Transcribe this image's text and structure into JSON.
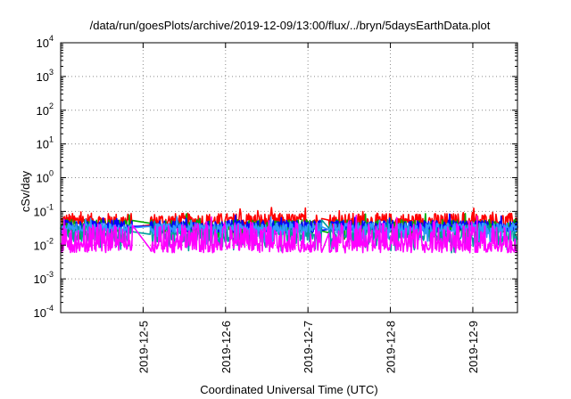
{
  "chart_data": {
    "type": "line",
    "title": "/data/run/goesPlots/archive/2019-12-09/13:00/flux/../bryn/5daysEarthData.plot",
    "xlabel": "Coordinated Universal Time (UTC)",
    "ylabel": "cSv/day",
    "yscale": "log",
    "ylim": [
      0.0001,
      10000
    ],
    "xlim": [
      "2019-12-04 00:00",
      "2019-12-09 13:00"
    ],
    "grid": true,
    "legend": "none",
    "yticks": [
      {
        "base": "10",
        "exp": "-4"
      },
      {
        "base": "10",
        "exp": "-3"
      },
      {
        "base": "10",
        "exp": "-2"
      },
      {
        "base": "10",
        "exp": "-1"
      },
      {
        "base": "10",
        "exp": "0"
      },
      {
        "base": "10",
        "exp": "1"
      },
      {
        "base": "10",
        "exp": "2"
      },
      {
        "base": "10",
        "exp": "3"
      },
      {
        "base": "10",
        "exp": "4"
      }
    ],
    "xticks": [
      "2019-12-5",
      "2019-12-6",
      "2019-12-7",
      "2019-12-8",
      "2019-12-9"
    ],
    "data_gaps": [
      [
        "2019-12-04 21:00",
        "2019-12-05 02:00"
      ],
      [
        "2019-12-07 04:00",
        "2019-12-07 06:00"
      ]
    ],
    "series": [
      {
        "color": "#ff0000",
        "level": 0.05,
        "spread": 0.25,
        "dips": 0.0
      },
      {
        "color": "#00aa00",
        "level": 0.036,
        "spread": 0.2,
        "dips": 0.15
      },
      {
        "color": "#0000ff",
        "level": 0.036,
        "spread": 0.18,
        "dips": 0.0
      },
      {
        "color": "#009e9e",
        "level": 0.022,
        "spread": 0.25,
        "dips": 0.2
      },
      {
        "color": "#3399ff",
        "level": 0.032,
        "spread": 0.15,
        "dips": 0.1
      },
      {
        "color": "#ff00ff",
        "level": 0.009,
        "spread": 0.18,
        "dips": 0.0,
        "spikes": 0.35
      }
    ]
  }
}
